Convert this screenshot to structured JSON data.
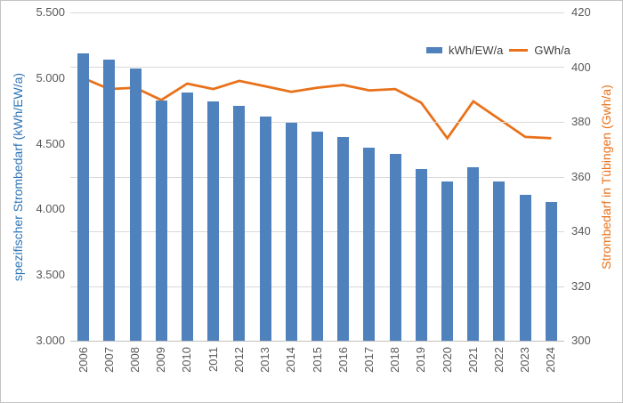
{
  "chart_data": {
    "type": "combo",
    "categories": [
      "2006",
      "2007",
      "2008",
      "2009",
      "2010",
      "2011",
      "2012",
      "2013",
      "2014",
      "2015",
      "2016",
      "2017",
      "2018",
      "2019",
      "2020",
      "2021",
      "2022",
      "2023",
      "2024"
    ],
    "series": [
      {
        "name": "kWh/EW/a",
        "type": "bar",
        "axis": "left",
        "color": "#4F81BD",
        "values": [
          5190,
          5140,
          5070,
          4830,
          4890,
          4820,
          4790,
          4710,
          4660,
          4590,
          4550,
          4470,
          4420,
          4310,
          4210,
          4320,
          4210,
          4110,
          4060
        ]
      },
      {
        "name": "GWh/a",
        "type": "line",
        "axis": "right",
        "color": "#E8711A",
        "values": [
          396,
          392,
          392.5,
          388,
          394,
          392,
          395,
          393,
          391,
          392.5,
          393.5,
          391.5,
          392,
          387,
          374,
          387.5,
          381,
          374.5,
          374
        ]
      }
    ],
    "left_axis": {
      "label": "spezifischer Strombedarf (kWh/EW/a)",
      "min": 3000,
      "max": 5500,
      "tick_values": [
        5500,
        5000,
        4500,
        4000,
        3500,
        3000
      ],
      "tick_labels": [
        "5.500",
        "5.000",
        "4.500",
        "4.000",
        "3.500",
        "3.000"
      ],
      "title_color": "#2E75B6",
      "tick_color": "#595959"
    },
    "right_axis": {
      "label": "Strombedarf in Tübingen (Gwh/a)",
      "min": 300,
      "max": 420,
      "tick_values": [
        420,
        400,
        380,
        360,
        340,
        320,
        300
      ],
      "tick_labels": [
        "420",
        "400",
        "380",
        "360",
        "340",
        "320",
        "300"
      ],
      "title_color": "#E8711A",
      "tick_color": "#595959"
    },
    "grid": {
      "orientation": "horizontal",
      "aligned_to": "right_axis",
      "color": "#d9d9d9"
    },
    "legend": {
      "position": "top-right-inside"
    }
  }
}
